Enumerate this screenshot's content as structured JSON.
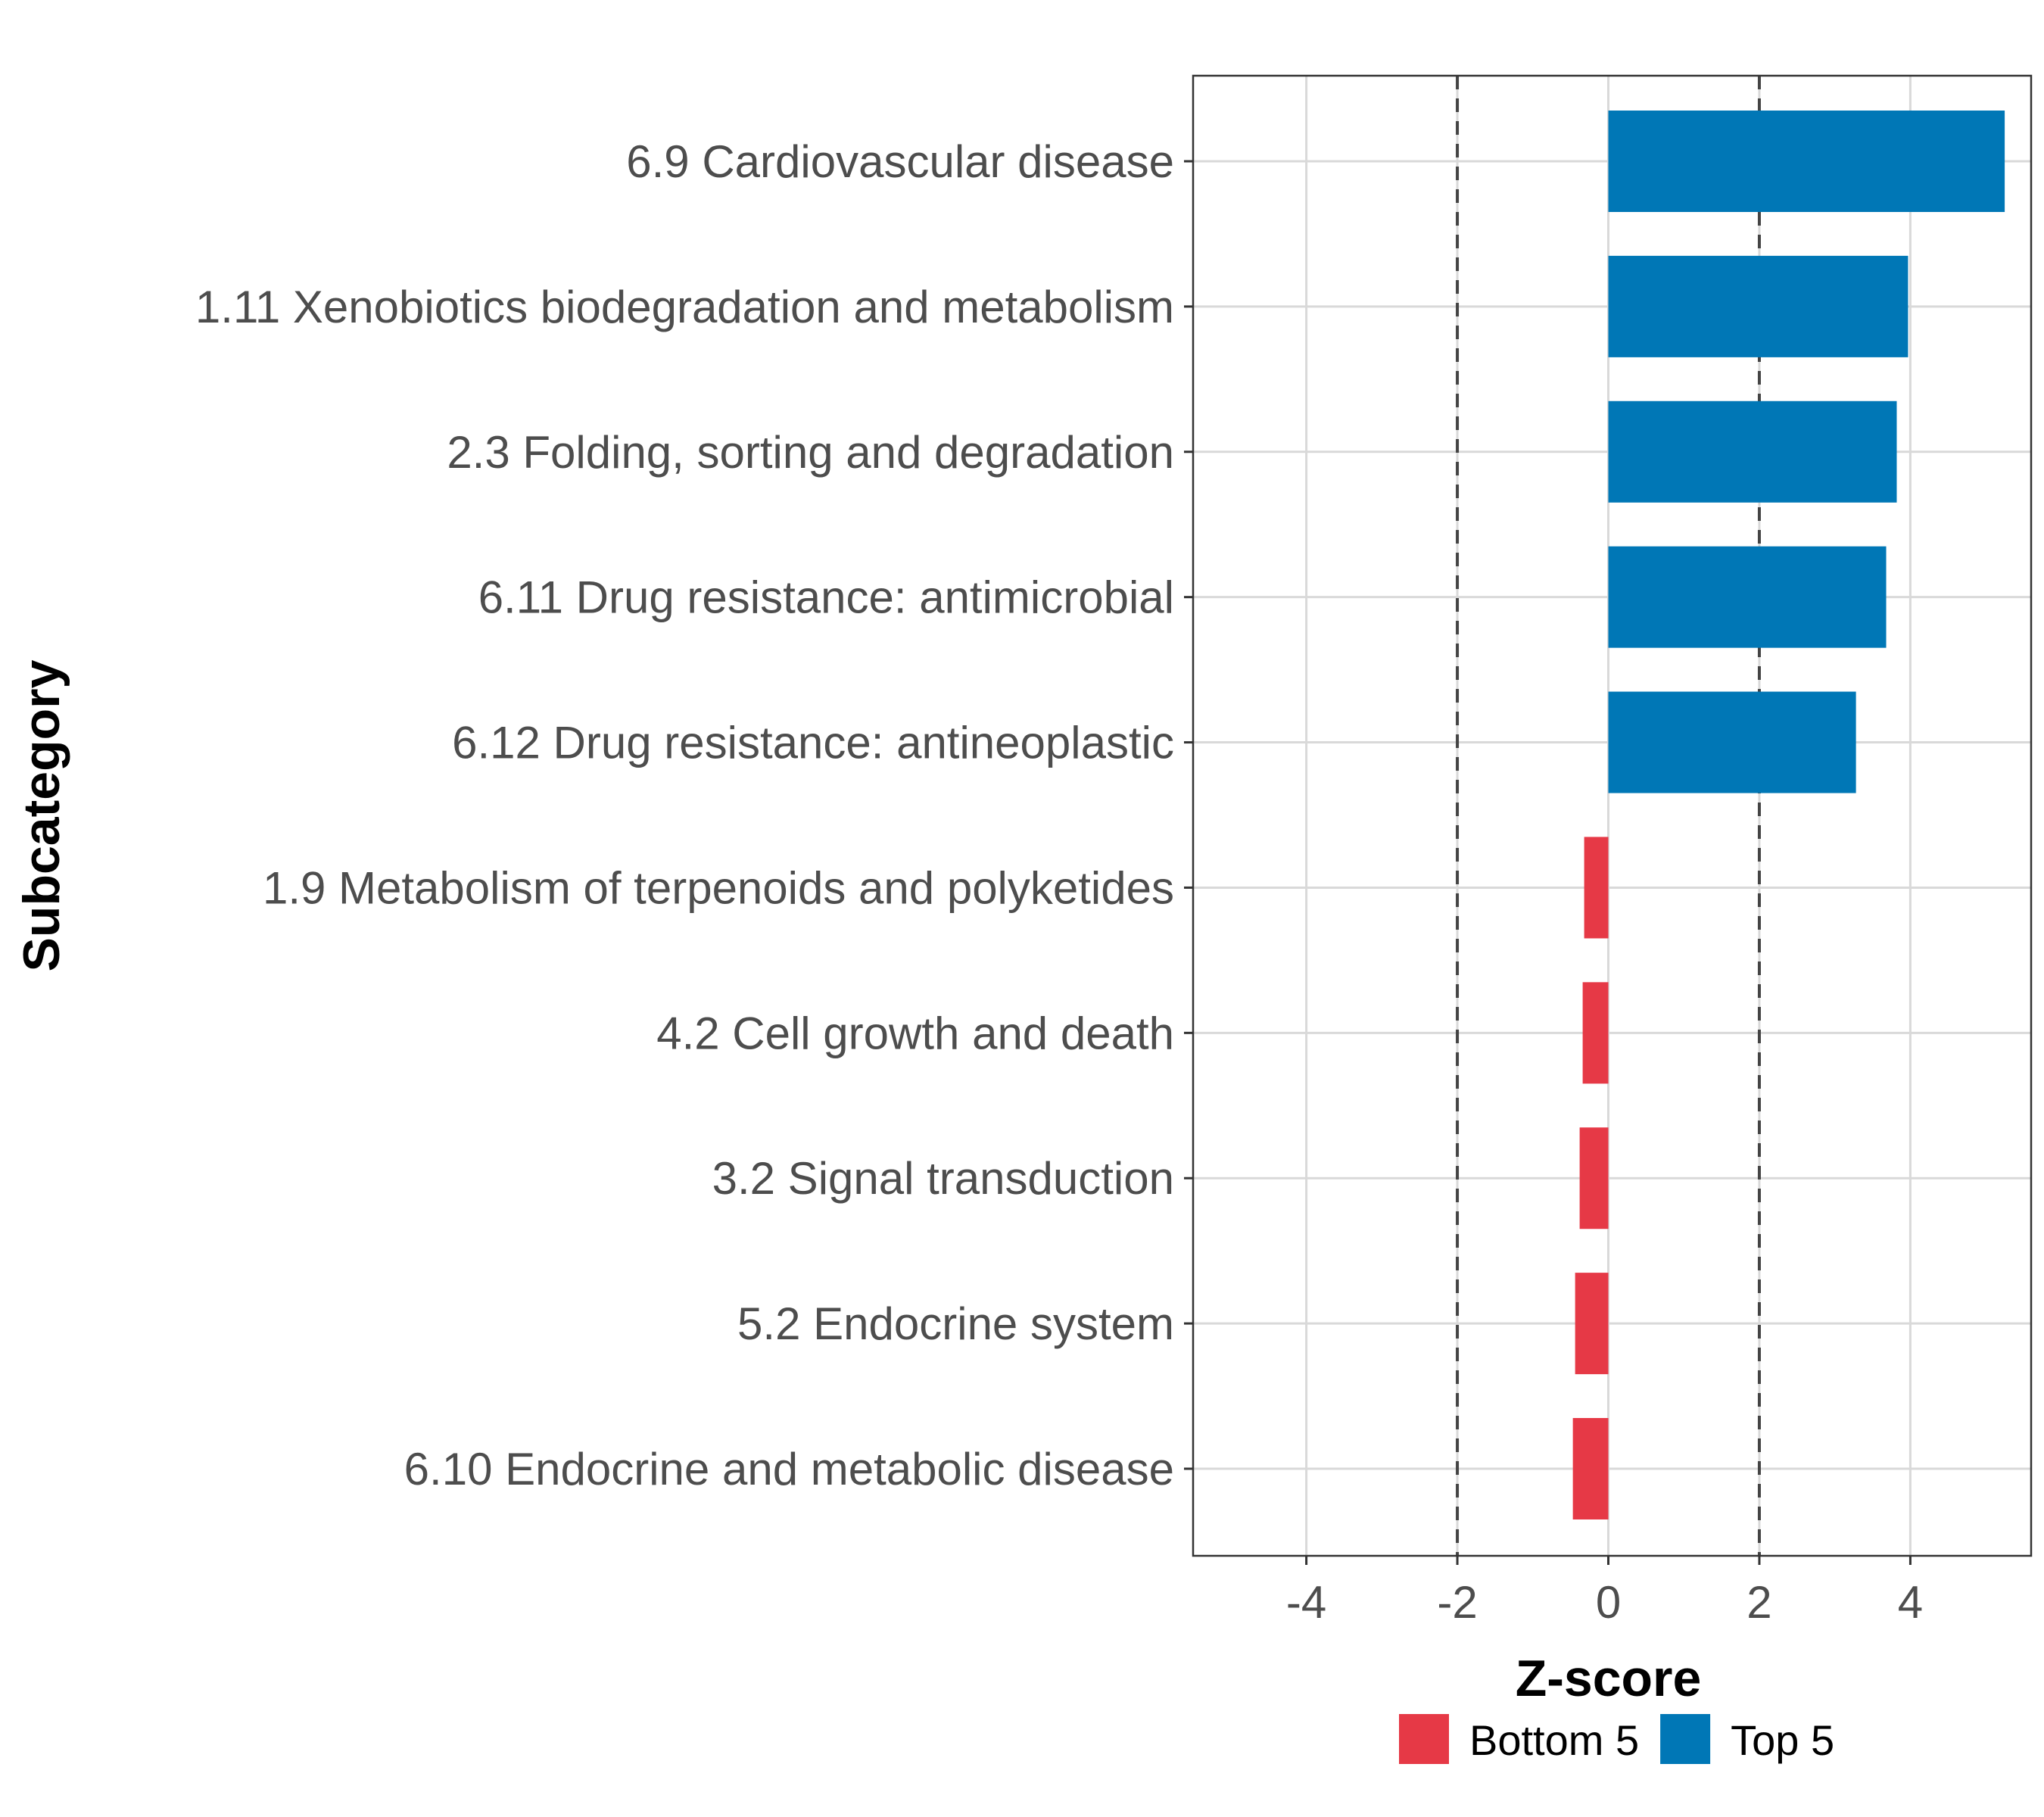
{
  "chart_data": {
    "type": "bar",
    "orientation": "horizontal",
    "xlabel": "Z-score",
    "ylabel": "Subcategory",
    "xlim": [
      -5.5,
      5.6
    ],
    "xticks": [
      -4,
      -2,
      0,
      2,
      4
    ],
    "xtick_labels": [
      "-4",
      "-2",
      "0",
      "2",
      "4"
    ],
    "reference_lines": [
      -2,
      2
    ],
    "grid": true,
    "legend_position": "bottom",
    "categories": [
      "6.9 Cardiovascular disease",
      "1.11 Xenobiotics biodegradation and metabolism",
      "2.3 Folding, sorting and degradation",
      "6.11 Drug resistance: antimicrobial",
      "6.12 Drug resistance: antineoplastic",
      "1.9 Metabolism of terpenoids and polyketides",
      "4.2 Cell growth and death",
      "3.2 Signal transduction",
      "5.2 Endocrine system",
      "6.10 Endocrine and metabolic disease"
    ],
    "values": [
      5.25,
      3.97,
      3.82,
      3.68,
      3.28,
      -0.32,
      -0.34,
      -0.38,
      -0.44,
      -0.47
    ],
    "groups": [
      "Top 5",
      "Top 5",
      "Top 5",
      "Top 5",
      "Top 5",
      "Bottom 5",
      "Bottom 5",
      "Bottom 5",
      "Bottom 5",
      "Bottom 5"
    ],
    "legend": [
      {
        "name": "Bottom 5",
        "color": "#e63946"
      },
      {
        "name": "Top 5",
        "color": "#0077b6"
      }
    ]
  }
}
